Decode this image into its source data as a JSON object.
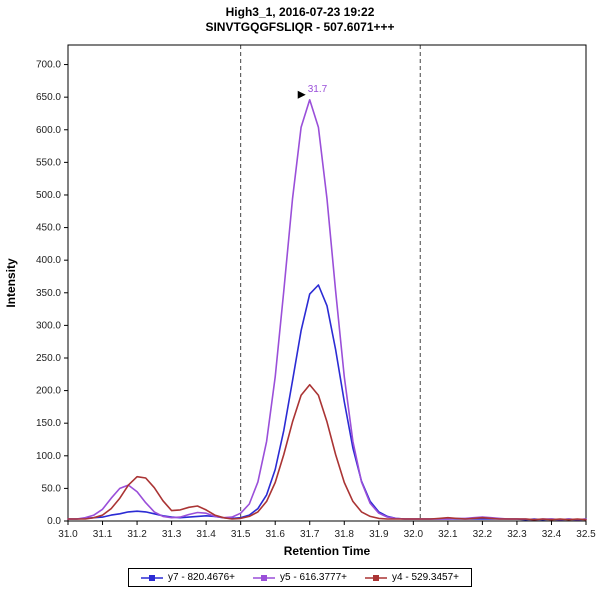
{
  "title": {
    "line1": "High3_1, 2016-07-23 19:22",
    "line2": "SINVTGQGFSLIQR - 507.6071+++"
  },
  "chart_data": {
    "type": "line",
    "title": "High3_1, 2016-07-23 19:22",
    "subtitle": "SINVTGQGFSLIQR - 507.6071+++",
    "xlabel": "Retention Time",
    "ylabel": "Intensity",
    "xlim": [
      31.0,
      32.5
    ],
    "ylim": [
      0,
      730
    ],
    "x_ticks": [
      31.0,
      31.1,
      31.2,
      31.3,
      31.4,
      31.5,
      31.6,
      31.7,
      31.8,
      31.9,
      32.0,
      32.1,
      32.2,
      32.3,
      32.4,
      32.5
    ],
    "y_ticks": [
      0,
      50,
      100,
      150,
      200,
      250,
      300,
      350,
      400,
      450,
      500,
      550,
      600,
      650,
      700
    ],
    "grid": false,
    "legend_position": "bottom",
    "boundaries": [
      31.5,
      32.02
    ],
    "peak_annotation": {
      "x": 31.7,
      "y": 646,
      "label": "31.7"
    },
    "x": [
      31.0,
      31.025,
      31.05,
      31.075,
      31.1,
      31.125,
      31.15,
      31.175,
      31.2,
      31.225,
      31.25,
      31.275,
      31.3,
      31.325,
      31.35,
      31.375,
      31.4,
      31.425,
      31.45,
      31.475,
      31.5,
      31.525,
      31.55,
      31.575,
      31.6,
      31.625,
      31.65,
      31.675,
      31.7,
      31.725,
      31.75,
      31.775,
      31.8,
      31.825,
      31.85,
      31.875,
      31.9,
      31.925,
      31.95,
      31.975,
      32.0,
      32.025,
      32.05,
      32.075,
      32.1,
      32.125,
      32.15,
      32.175,
      32.2,
      32.225,
      32.25,
      32.275,
      32.3,
      32.325,
      32.35,
      32.375,
      32.4,
      32.425,
      32.45,
      32.475,
      32.5
    ],
    "series": [
      {
        "name": "y7 - 820.4676+",
        "color": "#2b2bd4",
        "values": [
          3,
          3,
          4,
          5,
          6,
          9,
          11,
          14,
          15,
          14,
          11,
          8,
          6,
          5,
          6,
          7,
          8,
          7,
          5,
          4,
          5,
          9,
          19,
          40,
          79,
          139,
          215,
          292,
          348,
          362,
          330,
          263,
          183,
          112,
          61,
          30,
          14,
          7,
          4,
          3,
          3,
          3,
          3,
          3,
          3,
          3,
          3,
          3,
          3,
          3,
          3,
          3,
          3,
          2,
          3,
          2,
          3,
          2,
          3,
          2,
          3
        ]
      },
      {
        "name": "y5 - 616.3777+",
        "color": "#9a4fd9",
        "values": [
          3,
          3,
          5,
          9,
          18,
          35,
          50,
          55,
          45,
          28,
          14,
          7,
          5,
          6,
          10,
          13,
          12,
          7,
          5,
          6,
          12,
          26,
          60,
          122,
          221,
          353,
          494,
          604,
          646,
          604,
          494,
          353,
          221,
          122,
          60,
          27,
          12,
          6,
          4,
          3,
          3,
          3,
          3,
          3,
          3,
          4,
          4,
          5,
          6,
          5,
          4,
          3,
          3,
          3,
          2,
          3,
          3,
          2,
          3,
          2,
          3
        ]
      },
      {
        "name": "y4 - 529.3457+",
        "color": "#aa3434",
        "values": [
          3,
          3,
          3,
          5,
          9,
          19,
          35,
          55,
          68,
          66,
          51,
          31,
          16,
          17,
          21,
          23,
          17,
          9,
          5,
          3,
          4,
          7,
          14,
          30,
          59,
          102,
          152,
          193,
          209,
          193,
          152,
          102,
          59,
          30,
          14,
          7,
          4,
          3,
          3,
          3,
          3,
          3,
          3,
          4,
          5,
          4,
          3,
          4,
          5,
          4,
          3,
          3,
          3,
          3,
          2,
          3,
          2,
          3,
          2,
          3,
          2
        ]
      }
    ]
  }
}
